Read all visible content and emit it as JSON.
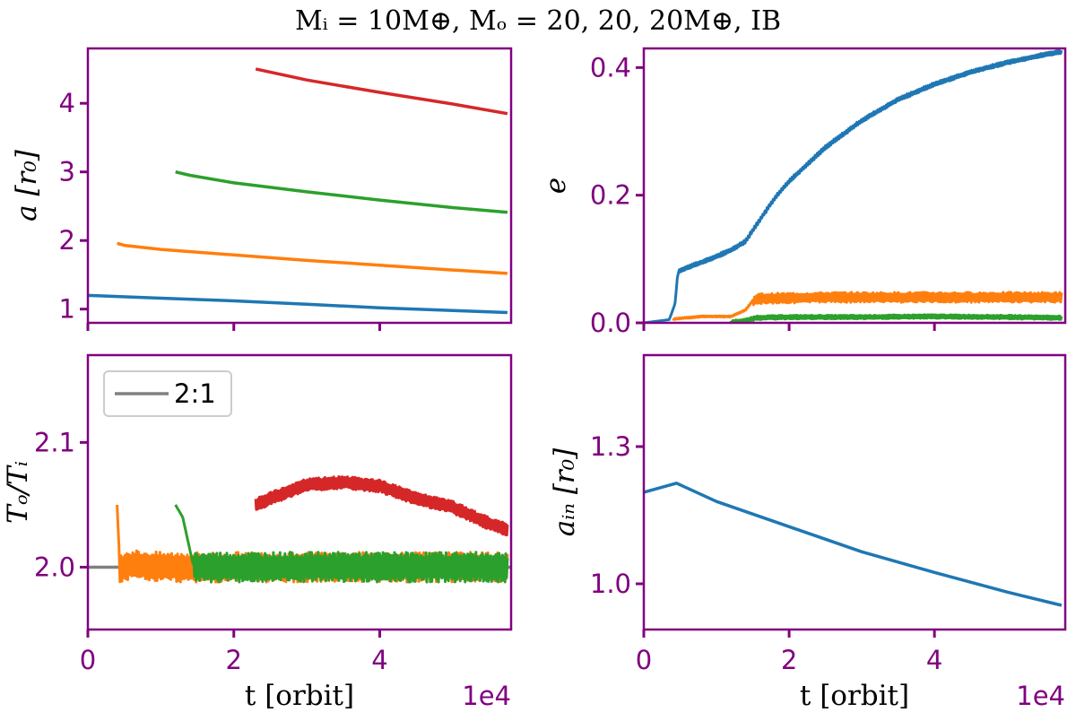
{
  "title": "Mᵢ = 10M⊕, Mₒ = 20, 20, 20M⊕,  IB",
  "colors": {
    "axes": "#800080",
    "blue": "#1f77b4",
    "orange": "#ff7f0e",
    "green": "#2ca02c",
    "red": "#d62728",
    "gray": "#808080"
  },
  "chart_data": [
    {
      "type": "line",
      "panel": "top-left",
      "xlabel": "",
      "ylabel": "a [r₀]",
      "xlim": [
        0,
        58000
      ],
      "ylim": [
        0.8,
        4.8
      ],
      "xticks": [
        0,
        20000,
        40000
      ],
      "xtick_labels": [
        "",
        "",
        ""
      ],
      "yticks": [
        1,
        2,
        3,
        4
      ],
      "ytick_labels": [
        "1",
        "2",
        "3",
        "4"
      ],
      "grid": false,
      "series": [
        {
          "color": "blue",
          "x": [
            0,
            10000,
            20000,
            30000,
            40000,
            50000,
            57500
          ],
          "y": [
            1.2,
            1.16,
            1.12,
            1.07,
            1.02,
            0.98,
            0.95
          ]
        },
        {
          "color": "orange",
          "x": [
            4000,
            5000,
            10000,
            20000,
            30000,
            40000,
            50000,
            57500
          ],
          "y": [
            1.96,
            1.93,
            1.87,
            1.79,
            1.71,
            1.64,
            1.57,
            1.52
          ]
        },
        {
          "color": "green",
          "x": [
            12000,
            14000,
            20000,
            30000,
            40000,
            50000,
            57500
          ],
          "y": [
            3.0,
            2.95,
            2.84,
            2.71,
            2.59,
            2.48,
            2.41
          ]
        },
        {
          "color": "red",
          "x": [
            23000,
            30000,
            40000,
            50000,
            57500
          ],
          "y": [
            4.5,
            4.34,
            4.16,
            3.99,
            3.85
          ]
        }
      ]
    },
    {
      "type": "line",
      "panel": "top-right",
      "xlabel": "",
      "ylabel": "e",
      "xlim": [
        0,
        58000
      ],
      "ylim": [
        0,
        0.43
      ],
      "xticks": [
        0,
        20000,
        40000
      ],
      "xtick_labels": [
        "",
        "",
        ""
      ],
      "yticks": [
        0.0,
        0.2,
        0.4
      ],
      "ytick_labels": [
        "0.0",
        "0.2",
        "0.4"
      ],
      "grid": false,
      "series": [
        {
          "color": "blue",
          "x": [
            0,
            3500,
            4300,
            4700,
            6000,
            8000,
            10000,
            12000,
            14000,
            16000,
            18000,
            20000,
            25000,
            30000,
            35000,
            40000,
            45000,
            50000,
            55000,
            57500
          ],
          "y": [
            0.0,
            0.005,
            0.03,
            0.08,
            0.087,
            0.095,
            0.104,
            0.114,
            0.128,
            0.162,
            0.195,
            0.222,
            0.275,
            0.317,
            0.35,
            0.374,
            0.393,
            0.408,
            0.42,
            0.425
          ]
        },
        {
          "color": "orange",
          "x": [
            4000,
            8000,
            12000,
            14000,
            15000,
            16000,
            25000,
            35000,
            45000,
            57500
          ],
          "y": [
            0.006,
            0.01,
            0.01,
            0.02,
            0.035,
            0.038,
            0.04,
            0.04,
            0.04,
            0.04
          ]
        },
        {
          "color": "green",
          "x": [
            12000,
            14000,
            15500,
            20000,
            30000,
            40000,
            50000,
            57500
          ],
          "y": [
            0.001,
            0.003,
            0.008,
            0.009,
            0.009,
            0.01,
            0.009,
            0.008
          ]
        }
      ]
    },
    {
      "type": "line",
      "panel": "bottom-left",
      "xlabel": "t [orbit]",
      "ylabel": "Tₒ/Tᵢ",
      "x_offset_text": "1e4",
      "xlim": [
        0,
        58000
      ],
      "ylim": [
        1.95,
        2.17
      ],
      "xticks": [
        0,
        20000,
        40000
      ],
      "xtick_labels": [
        "0",
        "2",
        "4"
      ],
      "yticks": [
        2.0,
        2.1
      ],
      "ytick_labels": [
        "2.0",
        "2.1"
      ],
      "grid": false,
      "legend": {
        "position": "top-left",
        "entries": [
          {
            "label": "2:1",
            "color": "gray"
          }
        ]
      },
      "series": [
        {
          "name": "2:1",
          "color": "gray",
          "x": [
            0,
            58000
          ],
          "y": [
            2.0,
            2.0
          ]
        },
        {
          "color": "orange",
          "x": [
            4000,
            4400,
            6000,
            10000,
            14000,
            20000,
            30000,
            40000,
            50000,
            57500
          ],
          "y": [
            2.05,
            2.0,
            2.002,
            2.0,
            2.0,
            2.0,
            2.0,
            2.0,
            2.0,
            2.0
          ]
        },
        {
          "color": "green",
          "x": [
            12000,
            13000,
            14500,
            20000,
            30000,
            40000,
            50000,
            57500
          ],
          "y": [
            2.05,
            2.04,
            2.0,
            2.0,
            2.0,
            2.0,
            2.0,
            2.0
          ]
        },
        {
          "color": "red",
          "x": [
            23000,
            25000,
            30000,
            35000,
            40000,
            45000,
            50000,
            55000,
            57500
          ],
          "y": [
            2.05,
            2.055,
            2.066,
            2.068,
            2.065,
            2.055,
            2.048,
            2.035,
            2.03
          ]
        }
      ]
    },
    {
      "type": "line",
      "panel": "bottom-right",
      "xlabel": "t [orbit]",
      "ylabel": "aᵢₙ [r₀]",
      "x_offset_text": "1e4",
      "xlim": [
        0,
        58000
      ],
      "ylim": [
        0.9,
        1.5
      ],
      "xticks": [
        0,
        20000,
        40000
      ],
      "xtick_labels": [
        "0",
        "2",
        "4"
      ],
      "yticks": [
        1.0,
        1.3
      ],
      "ytick_labels": [
        "1.0",
        "1.3"
      ],
      "grid": false,
      "series": [
        {
          "color": "blue",
          "x": [
            0,
            4500,
            10000,
            20000,
            30000,
            40000,
            50000,
            57500
          ],
          "y": [
            1.2,
            1.22,
            1.18,
            1.125,
            1.07,
            1.025,
            0.982,
            0.953
          ]
        }
      ]
    }
  ]
}
